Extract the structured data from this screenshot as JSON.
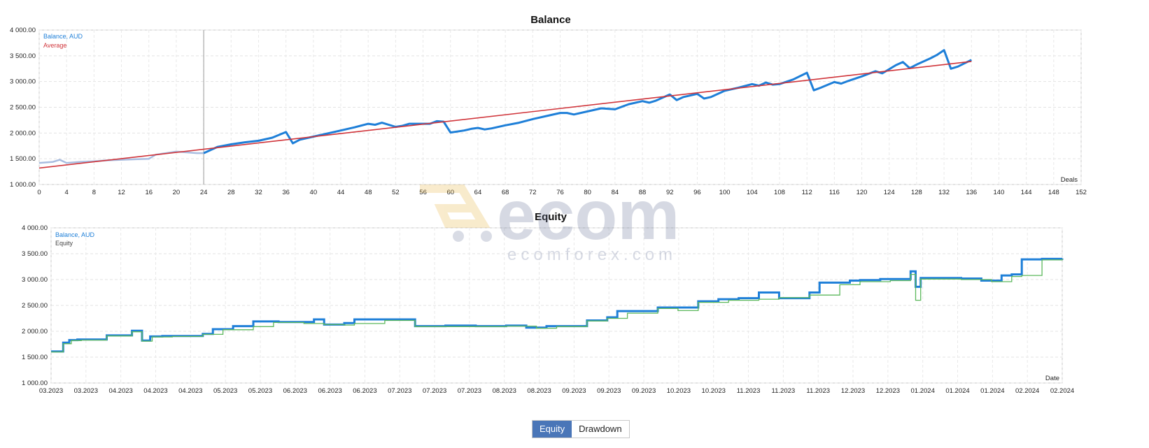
{
  "chart_data": [
    {
      "type": "line",
      "title": "Balance",
      "xlabel": "Deals",
      "ylabel": "",
      "xlim": [
        0,
        152
      ],
      "ylim": [
        1000,
        4000
      ],
      "xticks": [
        0,
        4,
        8,
        12,
        16,
        20,
        24,
        28,
        32,
        36,
        40,
        44,
        48,
        52,
        56,
        60,
        64,
        68,
        72,
        76,
        80,
        84,
        88,
        92,
        96,
        100,
        104,
        108,
        112,
        116,
        120,
        124,
        128,
        132,
        136,
        140,
        144,
        148,
        152
      ],
      "yticks": [
        1000,
        1500,
        2000,
        2500,
        3000,
        3500,
        4000
      ],
      "ytick_labels": [
        "1 000.00",
        "1 500.00",
        "2 000.00",
        "2 500.00",
        "3 000.00",
        "3 500.00",
        "4 000.00"
      ],
      "grid": true,
      "legend_position": "top-left",
      "marker_deal": 24,
      "series": [
        {
          "name": "Balance, AUD",
          "color": "#1e7fd8",
          "x": [
            0,
            2,
            3,
            4,
            6,
            8,
            10,
            12,
            14,
            16,
            17,
            20,
            23,
            24,
            26,
            28,
            30,
            32,
            34,
            36,
            37,
            38,
            40,
            42,
            44,
            46,
            48,
            49,
            50,
            52,
            53,
            54,
            56,
            57,
            58,
            59,
            60,
            62,
            63,
            64,
            65,
            66,
            68,
            70,
            72,
            74,
            76,
            77,
            78,
            80,
            82,
            84,
            86,
            88,
            89,
            90,
            92,
            93,
            94,
            96,
            97,
            98,
            100,
            102,
            104,
            105,
            106,
            107,
            108,
            110,
            112,
            113,
            114,
            116,
            117,
            118,
            120,
            122,
            123,
            124,
            125,
            126,
            127,
            128,
            130,
            131,
            132,
            133,
            134,
            136
          ],
          "y": [
            1420,
            1440,
            1480,
            1420,
            1440,
            1450,
            1470,
            1480,
            1490,
            1500,
            1580,
            1640,
            1610,
            1610,
            1730,
            1780,
            1820,
            1850,
            1910,
            2020,
            1800,
            1870,
            1930,
            1990,
            2050,
            2110,
            2180,
            2160,
            2200,
            2120,
            2140,
            2180,
            2180,
            2180,
            2230,
            2220,
            2010,
            2050,
            2080,
            2100,
            2070,
            2090,
            2150,
            2200,
            2270,
            2330,
            2390,
            2390,
            2360,
            2420,
            2480,
            2460,
            2560,
            2620,
            2590,
            2630,
            2750,
            2640,
            2700,
            2760,
            2670,
            2700,
            2820,
            2880,
            2950,
            2920,
            2980,
            2940,
            2950,
            3040,
            3170,
            2830,
            2880,
            2990,
            2960,
            3010,
            3100,
            3200,
            3160,
            3240,
            3320,
            3380,
            3260,
            3330,
            3450,
            3520,
            3610,
            3250,
            3290,
            3420
          ]
        },
        {
          "name": "Average",
          "color": "#d0343a",
          "x": [
            0,
            136
          ],
          "y": [
            1320,
            3390
          ]
        }
      ]
    },
    {
      "type": "line",
      "title": "Equity",
      "xlabel": "Date",
      "ylabel": "",
      "xlim": [
        0,
        1
      ],
      "ylim": [
        1000,
        4000
      ],
      "yticks": [
        1000,
        1500,
        2000,
        2500,
        3000,
        3500,
        4000
      ],
      "ytick_labels": [
        "1 000.00",
        "1 500.00",
        "2 000.00",
        "2 500.00",
        "3 000.00",
        "3 500.00",
        "4 000.00"
      ],
      "xtick_labels": [
        "03.2023",
        "03.2023",
        "04.2023",
        "04.2023",
        "04.2023",
        "05.2023",
        "05.2023",
        "06.2023",
        "06.2023",
        "06.2023",
        "07.2023",
        "07.2023",
        "07.2023",
        "08.2023",
        "08.2023",
        "09.2023",
        "09.2023",
        "09.2023",
        "10.2023",
        "10.2023",
        "11.2023",
        "11.2023",
        "11.2023",
        "12.2023",
        "12.2023",
        "01.2024",
        "01.2024",
        "01.2024",
        "02.2024",
        "02.2024"
      ],
      "grid": true,
      "legend_position": "top-left",
      "series": [
        {
          "name": "Balance, AUD",
          "color": "#1e7fd8",
          "x": [
            0,
            0.012,
            0.018,
            0.026,
            0.055,
            0.08,
            0.09,
            0.098,
            0.11,
            0.15,
            0.16,
            0.18,
            0.2,
            0.225,
            0.26,
            0.27,
            0.29,
            0.3,
            0.32,
            0.36,
            0.37,
            0.39,
            0.42,
            0.45,
            0.47,
            0.49,
            0.53,
            0.55,
            0.56,
            0.6,
            0.61,
            0.64,
            0.66,
            0.68,
            0.7,
            0.72,
            0.75,
            0.76,
            0.79,
            0.8,
            0.82,
            0.85,
            0.855,
            0.86,
            0.9,
            0.92,
            0.94,
            0.95,
            0.96,
            0.98,
            1.0
          ],
          "y": [
            1610,
            1780,
            1830,
            1840,
            1920,
            2010,
            1820,
            1900,
            1910,
            1950,
            2040,
            2100,
            2190,
            2180,
            2230,
            2130,
            2160,
            2230,
            2230,
            2100,
            2100,
            2110,
            2100,
            2110,
            2070,
            2100,
            2210,
            2270,
            2390,
            2460,
            2460,
            2580,
            2620,
            2640,
            2750,
            2640,
            2750,
            2940,
            2980,
            2990,
            3010,
            3160,
            2860,
            3030,
            3020,
            2980,
            3080,
            3100,
            3390,
            3400,
            3410
          ]
        },
        {
          "name": "Equity",
          "color": "#5cb85c",
          "x": [
            0,
            0.012,
            0.02,
            0.03,
            0.055,
            0.08,
            0.09,
            0.1,
            0.12,
            0.15,
            0.17,
            0.2,
            0.22,
            0.25,
            0.27,
            0.29,
            0.3,
            0.33,
            0.36,
            0.38,
            0.42,
            0.45,
            0.48,
            0.5,
            0.53,
            0.55,
            0.57,
            0.6,
            0.62,
            0.64,
            0.67,
            0.7,
            0.72,
            0.75,
            0.78,
            0.8,
            0.83,
            0.85,
            0.855,
            0.86,
            0.9,
            0.93,
            0.95,
            0.96,
            0.98,
            1.0
          ],
          "y": [
            1600,
            1760,
            1820,
            1830,
            1910,
            1990,
            1810,
            1890,
            1900,
            1940,
            2030,
            2090,
            2170,
            2150,
            2130,
            2120,
            2150,
            2210,
            2090,
            2090,
            2090,
            2100,
            2060,
            2090,
            2200,
            2250,
            2350,
            2440,
            2400,
            2560,
            2600,
            2620,
            2650,
            2700,
            2900,
            2960,
            2980,
            3100,
            2600,
            3010,
            3000,
            2960,
            3060,
            3080,
            3380,
            3400
          ]
        }
      ]
    }
  ],
  "tabs": {
    "equity_label": "Equity",
    "drawdown_label": "Drawdown"
  },
  "watermark": {
    "logo_text": "ecom",
    "site_text": "ecomforex.com"
  }
}
